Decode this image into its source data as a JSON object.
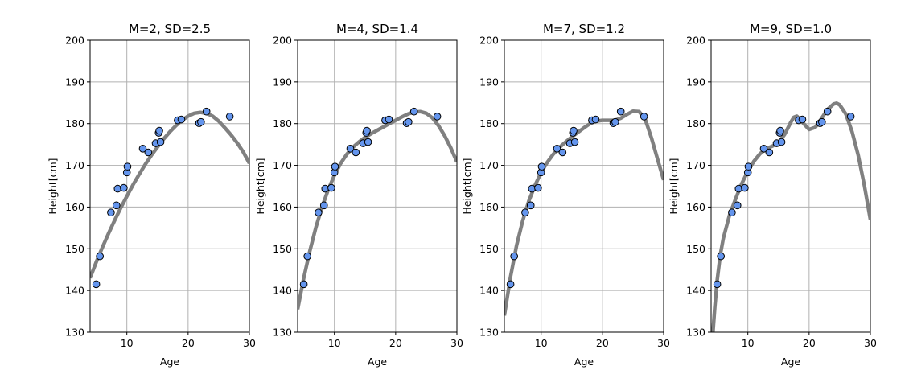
{
  "chart_data": [
    {
      "type": "line",
      "title": "M=2, SD=2.5",
      "xlabel": "Age",
      "ylabel": "Height[cm]",
      "xlim": [
        4,
        30
      ],
      "ylim": [
        130,
        200
      ],
      "xticks": [
        10,
        20,
        30
      ],
      "yticks": [
        130,
        140,
        150,
        160,
        170,
        180,
        190,
        200
      ],
      "grid": true,
      "fit_curve": {
        "x": [
          4,
          5,
          6,
          7,
          8,
          9,
          10,
          11,
          12,
          13,
          14,
          15,
          16,
          17,
          18,
          19,
          20,
          21,
          22,
          23,
          24,
          25,
          26,
          27,
          28,
          29,
          30
        ],
        "y": [
          143,
          146.8,
          150.3,
          153.6,
          156.8,
          159.8,
          162.6,
          165.3,
          167.8,
          170.2,
          172.4,
          174.4,
          176.3,
          178,
          179.5,
          180.8,
          181.8,
          182.5,
          182.7,
          182.5,
          181.8,
          180.6,
          179,
          177.3,
          175.4,
          173.2,
          170.5
        ]
      },
      "points": {
        "x": [
          5,
          5.6,
          7.4,
          8.3,
          8.5,
          9.5,
          10,
          10.1,
          12.6,
          13.5,
          14.7,
          15.2,
          15.3,
          15.5,
          18.3,
          18.9,
          21.8,
          22.1,
          23,
          26.8
        ],
        "y": [
          141.5,
          148.2,
          158.7,
          160.4,
          164.4,
          164.6,
          168.3,
          169.7,
          174,
          173.1,
          175.3,
          177.8,
          178.3,
          175.6,
          180.8,
          181,
          180.1,
          180.4,
          182.9,
          181.7
        ]
      }
    },
    {
      "type": "line",
      "title": "M=4, SD=1.4",
      "xlabel": "Age",
      "ylabel": "Height[cm]",
      "xlim": [
        4,
        30
      ],
      "ylim": [
        130,
        200
      ],
      "xticks": [
        10,
        20,
        30
      ],
      "yticks": [
        130,
        140,
        150,
        160,
        170,
        180,
        190,
        200
      ],
      "grid": true,
      "fit_curve": {
        "x": [
          4,
          5,
          6,
          7,
          8,
          9,
          10,
          11,
          12,
          13,
          14,
          15,
          16,
          17,
          18,
          19,
          20,
          21,
          22,
          23,
          24,
          25,
          26,
          27,
          28,
          29,
          30
        ],
        "y": [
          135.5,
          143,
          149.5,
          155.2,
          160.1,
          164.2,
          167.6,
          170.4,
          172.6,
          174.3,
          175.6,
          176.7,
          177.6,
          178.4,
          179.2,
          180,
          180.8,
          181.6,
          182.3,
          182.8,
          182.9,
          182.5,
          181.4,
          179.5,
          177.1,
          174.2,
          170.8
        ]
      },
      "points": {
        "x": [
          5,
          5.6,
          7.4,
          8.3,
          8.5,
          9.5,
          10,
          10.1,
          12.6,
          13.5,
          14.7,
          15.2,
          15.3,
          15.5,
          18.3,
          18.9,
          21.8,
          22.1,
          23,
          26.8
        ],
        "y": [
          141.5,
          148.2,
          158.7,
          160.4,
          164.4,
          164.6,
          168.3,
          169.7,
          174,
          173.1,
          175.3,
          177.8,
          178.3,
          175.6,
          180.8,
          181,
          180.1,
          180.4,
          182.9,
          181.7
        ]
      }
    },
    {
      "type": "line",
      "title": "M=7, SD=1.2",
      "xlabel": "Age",
      "ylabel": "Height[cm]",
      "xlim": [
        4,
        30
      ],
      "ylim": [
        130,
        200
      ],
      "xticks": [
        10,
        20,
        30
      ],
      "yticks": [
        130,
        140,
        150,
        160,
        170,
        180,
        190,
        200
      ],
      "grid": true,
      "fit_curve": {
        "x": [
          4,
          5,
          6,
          7,
          8,
          9,
          10,
          11,
          12,
          13,
          14,
          15,
          16,
          17,
          18,
          19,
          20,
          21,
          22,
          23,
          24,
          25,
          26,
          27,
          28,
          29,
          30
        ],
        "y": [
          134,
          143.2,
          150.8,
          156.7,
          161.5,
          165.2,
          168.3,
          170.7,
          172.7,
          174.3,
          175.6,
          176.8,
          177.9,
          179,
          180,
          180.6,
          180.8,
          180.8,
          180.8,
          181.3,
          182.2,
          183,
          182.9,
          181,
          176.6,
          171.5,
          166.5
        ]
      },
      "points": {
        "x": [
          5,
          5.6,
          7.4,
          8.3,
          8.5,
          9.5,
          10,
          10.1,
          12.6,
          13.5,
          14.7,
          15.2,
          15.3,
          15.5,
          18.3,
          18.9,
          21.8,
          22.1,
          23,
          26.8
        ],
        "y": [
          141.5,
          148.2,
          158.7,
          160.4,
          164.4,
          164.6,
          168.3,
          169.7,
          174,
          173.1,
          175.3,
          177.8,
          178.3,
          175.6,
          180.8,
          181,
          180.1,
          180.4,
          182.9,
          181.7
        ]
      }
    },
    {
      "type": "line",
      "title": "M=9, SD=1.0",
      "xlabel": "Age",
      "ylabel": "Height[cm]",
      "xlim": [
        4,
        30
      ],
      "ylim": [
        130,
        200
      ],
      "xticks": [
        10,
        20,
        30
      ],
      "yticks": [
        130,
        140,
        150,
        160,
        170,
        180,
        190,
        200
      ],
      "grid": true,
      "fit_curve": {
        "x": [
          4.3,
          4.6,
          5,
          5.5,
          6,
          7,
          8,
          9,
          10,
          11,
          12,
          13,
          14,
          15,
          16,
          17,
          17.5,
          18,
          19,
          20,
          21,
          22,
          23,
          24,
          24.5,
          25,
          26,
          27,
          28,
          29,
          30
        ],
        "y": [
          130,
          136,
          142.5,
          148.5,
          152.5,
          158,
          162,
          165.6,
          168.6,
          171,
          172.8,
          174,
          174.6,
          175.4,
          177.4,
          180.3,
          181.5,
          181.8,
          180.2,
          178.6,
          179.1,
          181.2,
          183.4,
          184.7,
          184.9,
          184.5,
          182.3,
          178.1,
          172.5,
          165.3,
          157
        ]
      },
      "points": {
        "x": [
          5,
          5.6,
          7.4,
          8.3,
          8.5,
          9.5,
          10,
          10.1,
          12.6,
          13.5,
          14.7,
          15.2,
          15.3,
          15.5,
          18.3,
          18.9,
          21.8,
          22.1,
          23,
          26.8
        ],
        "y": [
          141.5,
          148.2,
          158.7,
          160.4,
          164.4,
          164.6,
          168.3,
          169.7,
          174,
          173.1,
          175.3,
          177.8,
          178.3,
          175.6,
          180.8,
          181,
          180.1,
          180.4,
          182.9,
          181.7
        ]
      }
    }
  ]
}
